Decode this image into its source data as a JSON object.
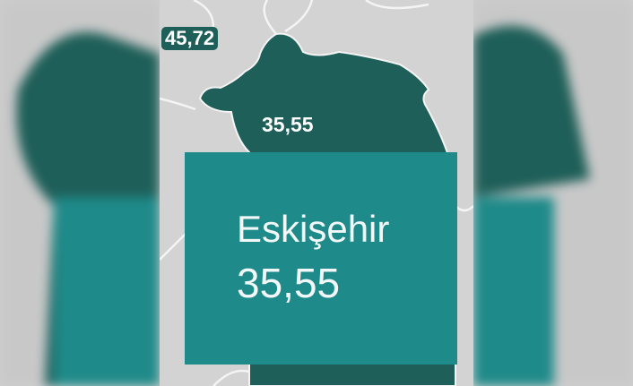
{
  "map": {
    "region_labels": [
      {
        "value": "45,72"
      },
      {
        "value": "35,55"
      }
    ],
    "highlight_color": "#1f5f59",
    "base_color": "#d3d3d3"
  },
  "tooltip": {
    "province": "Eskişehir",
    "value": "35,55",
    "color": "#1e8a89"
  }
}
